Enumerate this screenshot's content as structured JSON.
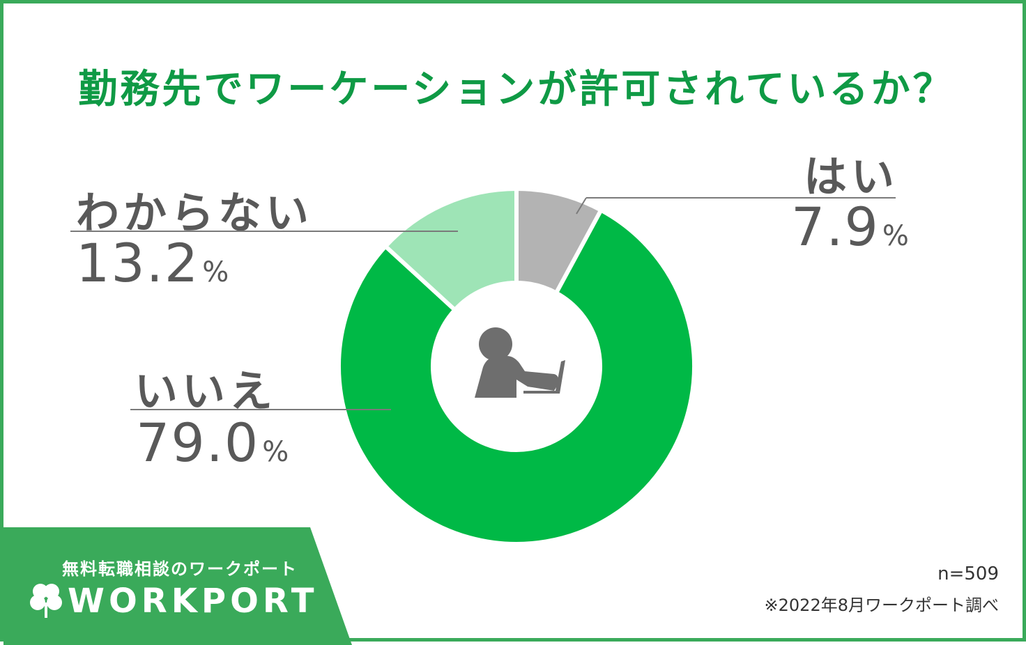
{
  "chart_data": {
    "type": "pie",
    "title": "勤務先でワーケーションが許可されているか？",
    "categories": [
      "はい",
      "いいえ",
      "わからない"
    ],
    "values": [
      7.9,
      79.0,
      13.2
    ],
    "value_labels": [
      "7.9",
      "79.0",
      "13.2"
    ],
    "unit": "%",
    "colors": [
      "#b3b3b3",
      "#00b946",
      "#9ee4b6"
    ],
    "center_icon": "person-at-laptop-icon"
  },
  "brand": {
    "tagline": "無料転職相談のワークポート",
    "logo_text": "WORKPORT",
    "logo_icon": "clover-icon"
  },
  "notes": {
    "sample": "n=509",
    "source": "※2022年8月ワークポート調べ"
  }
}
